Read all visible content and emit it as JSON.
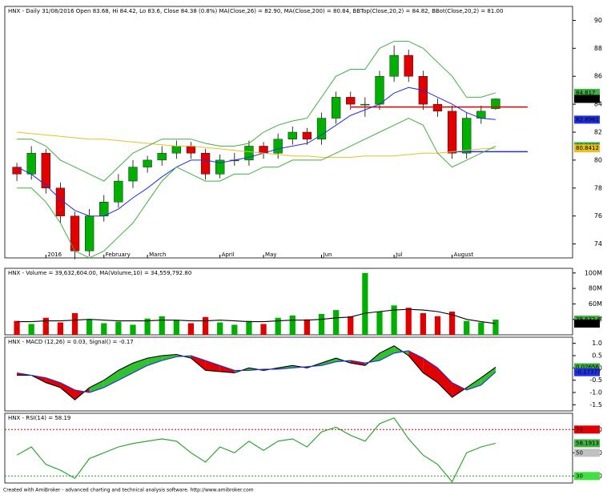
{
  "chart_data": [
    {
      "type": "candlestick",
      "title": "HNX - Daily 31/08/2016 Open 83.68, Hi 84.42, Lo 83.6, Close 84.38 (0.8%) MA(Close,26) = 82.90, MA(Close,200) = 80.84, BBTop(Close,20,2) = 84.82, BBot(Close,20,2) = 81.00",
      "categories": [
        null,
        null,
        "2016",
        null,
        null,
        null,
        "February",
        null,
        null,
        "March",
        null,
        null,
        null,
        null,
        "April",
        null,
        null,
        "May",
        null,
        null,
        null,
        "Jun",
        null,
        null,
        null,
        null,
        "Jul",
        null,
        null,
        null,
        "August",
        null,
        null,
        null
      ],
      "open": [
        79.5,
        79,
        80.5,
        78,
        76,
        73.5,
        76,
        77,
        78.5,
        79.5,
        80,
        80.5,
        81,
        80.5,
        79,
        80,
        80,
        81,
        80.5,
        81.5,
        82,
        81.5,
        83,
        84.5,
        84,
        84,
        86,
        87.5,
        86,
        84,
        83.5,
        80.5,
        83,
        83.68
      ],
      "high": [
        79.8,
        81,
        80.8,
        78.4,
        76.3,
        76.5,
        77.5,
        79,
        80,
        80.3,
        81,
        81.4,
        81.3,
        80.8,
        80.4,
        80.5,
        81.4,
        81.3,
        81.9,
        82.4,
        82.3,
        83.4,
        84.9,
        84.9,
        84.5,
        86.4,
        88.2,
        87.9,
        86.4,
        84.4,
        83.9,
        83.4,
        83.9,
        84.42
      ],
      "low": [
        78.5,
        78.6,
        77.6,
        75.5,
        72.9,
        73.1,
        75.6,
        76.6,
        78,
        79.1,
        79.6,
        80.1,
        80.1,
        78.6,
        78.7,
        79.6,
        79.6,
        80.1,
        80.1,
        81.1,
        81.1,
        81.1,
        82.6,
        83.6,
        83.1,
        83.6,
        85.6,
        85.6,
        83.6,
        83.1,
        80.1,
        80.1,
        82.6,
        83.6
      ],
      "close": [
        79,
        80.5,
        78,
        76,
        73.5,
        76,
        77,
        78.5,
        79.5,
        80,
        80.5,
        81,
        80.5,
        79,
        80,
        80,
        81,
        80.5,
        81.5,
        82,
        81.5,
        83,
        84.5,
        84,
        84,
        86,
        87.5,
        86,
        84,
        83.5,
        80.5,
        83,
        83.5,
        84.38
      ],
      "up_color": "#00b000",
      "down_color": "#e00000",
      "series": [
        {
          "name": "MA(Close,26)",
          "color": "#2030e0",
          "values": [
            79.5,
            79,
            78.2,
            77.2,
            76.4,
            76,
            76,
            76.5,
            77.3,
            78,
            78.8,
            79.5,
            80,
            80,
            79.8,
            80,
            80.2,
            80.5,
            80.8,
            81,
            81.2,
            81.8,
            82.5,
            83.2,
            83.6,
            84,
            84.8,
            85.2,
            85,
            84.5,
            84,
            83.4,
            83,
            82.9
          ]
        },
        {
          "name": "MA(Close,200)",
          "color": "#e8c020",
          "values": [
            82,
            81.9,
            81.8,
            81.7,
            81.6,
            81.5,
            81.5,
            81.4,
            81.3,
            81.2,
            81.1,
            81,
            81,
            80.9,
            80.8,
            80.7,
            80.6,
            80.5,
            80.4,
            80.3,
            80.3,
            80.2,
            80.2,
            80.2,
            80.3,
            80.3,
            80.3,
            80.4,
            80.5,
            80.5,
            80.6,
            80.7,
            80.8,
            80.84
          ]
        },
        {
          "name": "BBTop(Close,20,2)",
          "color": "#40b040",
          "values": [
            81.5,
            81.5,
            81,
            80,
            79.5,
            79,
            78.5,
            79.5,
            80.5,
            81,
            81.5,
            81.5,
            81.5,
            81.2,
            81,
            81,
            81.2,
            82,
            82.5,
            82.8,
            83,
            84.5,
            86,
            86.5,
            86.5,
            88,
            88.5,
            88.5,
            88,
            87,
            86,
            84.5,
            84.5,
            84.82
          ]
        },
        {
          "name": "BBot(Close,20,2)",
          "color": "#40b040",
          "values": [
            78,
            78,
            77,
            75.5,
            73.5,
            73,
            73.5,
            74.5,
            75.5,
            77,
            78.5,
            79.5,
            79,
            78.5,
            78.5,
            79,
            79,
            79.5,
            79.5,
            80,
            80,
            80,
            80.5,
            81,
            81.5,
            82,
            82.5,
            83,
            82.5,
            80.5,
            79.5,
            80,
            80.5,
            81.0
          ]
        }
      ],
      "hlines": [
        {
          "value": 83.8,
          "from": 23,
          "color": "#e00000"
        },
        {
          "value": 80.6,
          "from": 30,
          "color": "#2030e0"
        }
      ],
      "ylim": [
        73,
        91
      ],
      "yticks": [
        74,
        76,
        78,
        80,
        82,
        84,
        86,
        88,
        90
      ],
      "tags": [
        {
          "label": "84.817",
          "value": 84.817,
          "color": "#40b040"
        },
        {
          "label": "84.38",
          "value": 84.38,
          "color": "#000000"
        },
        {
          "label": "82.8961",
          "value": 82.8961,
          "color": "#2030e0"
        },
        {
          "label": "80.9992",
          "value": 80.9992,
          "color": "#40b040"
        },
        {
          "label": "80.8412",
          "value": 80.8412,
          "color": "#e8c020"
        }
      ]
    },
    {
      "type": "bar",
      "title": "HNX - Volume = 39,632,604.00, MA(Volume,10) = 34,559,792.80",
      "values": [
        38000000,
        34000000,
        42000000,
        36000000,
        48000000,
        40000000,
        35000000,
        37000000,
        33000000,
        41000000,
        44000000,
        39000000,
        35000000,
        43000000,
        36000000,
        33000000,
        38000000,
        34000000,
        42000000,
        45000000,
        40000000,
        47000000,
        52000000,
        44000000,
        100000000,
        50000000,
        58000000,
        55000000,
        48000000,
        44000000,
        50000000,
        38000000,
        36000000,
        39632604
      ],
      "series": [
        {
          "name": "MA(Volume,10)",
          "color": "#000000",
          "values": [
            37000000,
            37000000,
            38000000,
            38000000,
            39000000,
            40000000,
            39000000,
            38000000,
            38000000,
            38000000,
            39000000,
            39000000,
            38000000,
            38000000,
            39000000,
            38000000,
            37000000,
            37000000,
            38000000,
            39000000,
            39000000,
            40000000,
            42000000,
            43000000,
            48000000,
            50000000,
            52000000,
            53000000,
            52000000,
            50000000,
            46000000,
            40000000,
            37000000,
            34559792.8
          ]
        }
      ],
      "ylim": [
        20000000,
        106000000
      ],
      "yticks": [
        {
          "value": 100000000,
          "label": "100M"
        },
        {
          "value": 80000000,
          "label": "80M"
        },
        {
          "value": 60000000,
          "label": "60M"
        },
        {
          "value": 40000000,
          "label": "40M"
        }
      ],
      "tags": [
        {
          "label": "39,632,6",
          "value": 39632604,
          "color": "#40b040"
        },
        {
          "label": "34,559,7",
          "value": 34559792.8,
          "color": "#000000"
        }
      ]
    },
    {
      "type": "line",
      "title": "HNX - MACD (12,26) = 0.03, Signal() = -0.17",
      "series": [
        {
          "name": "MACD",
          "color": "#000000",
          "values": [
            -0.3,
            -0.3,
            -0.6,
            -0.8,
            -1.3,
            -0.8,
            -0.5,
            -0.1,
            0.2,
            0.4,
            0.5,
            0.55,
            0.4,
            -0.1,
            -0.15,
            -0.2,
            0,
            -0.1,
            0,
            0.1,
            0,
            0.2,
            0.4,
            0.2,
            0.1,
            0.6,
            0.9,
            0.5,
            -0.2,
            -0.6,
            -1.2,
            -0.8,
            -0.4,
            0.03
          ]
        },
        {
          "name": "Signal",
          "color": "#2030e0",
          "values": [
            -0.2,
            -0.3,
            -0.4,
            -0.6,
            -0.9,
            -1,
            -0.8,
            -0.5,
            -0.2,
            0.1,
            0.3,
            0.45,
            0.5,
            0.3,
            0.1,
            -0.1,
            -0.1,
            -0.05,
            -0.05,
            0,
            0.05,
            0.1,
            0.25,
            0.3,
            0.2,
            0.3,
            0.6,
            0.7,
            0.4,
            0,
            -0.6,
            -0.9,
            -0.7,
            -0.17
          ]
        }
      ],
      "fill_up": "#30c030",
      "fill_down": "#e00000",
      "ylim": [
        -1.75,
        1.25
      ],
      "yticks": [
        {
          "value": 1,
          "label": "1.0"
        },
        0.5,
        0,
        -0.5,
        {
          "value": -1,
          "label": "-1.0"
        },
        -1.5
      ],
      "tags": [
        {
          "label": "0.02656",
          "value": 0.02656,
          "color": "#40b040"
        },
        {
          "label": "-0.17377",
          "value": -0.17377,
          "color": "#2030e0"
        }
      ]
    },
    {
      "type": "line",
      "title": "HNX - RSI(14) = 58.19",
      "series": [
        {
          "name": "RSI(14)",
          "color": "#20a020",
          "values": [
            48,
            55,
            40,
            35,
            28,
            45,
            50,
            55,
            58,
            60,
            62,
            60,
            50,
            42,
            55,
            50,
            60,
            52,
            60,
            62,
            55,
            68,
            72,
            65,
            60,
            75,
            80,
            62,
            48,
            40,
            25,
            50,
            55,
            58.19
          ]
        }
      ],
      "levels": [
        {
          "value": 70,
          "color": "#e00000"
        },
        {
          "value": 30,
          "color": "#20a020"
        }
      ],
      "ylim": [
        24,
        84
      ],
      "yticks": [
        70,
        50,
        30
      ],
      "tags": [
        {
          "label": "70",
          "value": 70,
          "color": "#e00000"
        },
        {
          "label": "58.1913",
          "value": 58.1913,
          "color": "#40b040"
        },
        {
          "label": "50",
          "value": 50,
          "color": "#c0c0c0"
        },
        {
          "label": "30",
          "value": 30,
          "color": "#40e040"
        }
      ]
    }
  ],
  "footer": "Created with AmiBroker - advanced charting and technical analysis software. http://www.amibroker.com"
}
